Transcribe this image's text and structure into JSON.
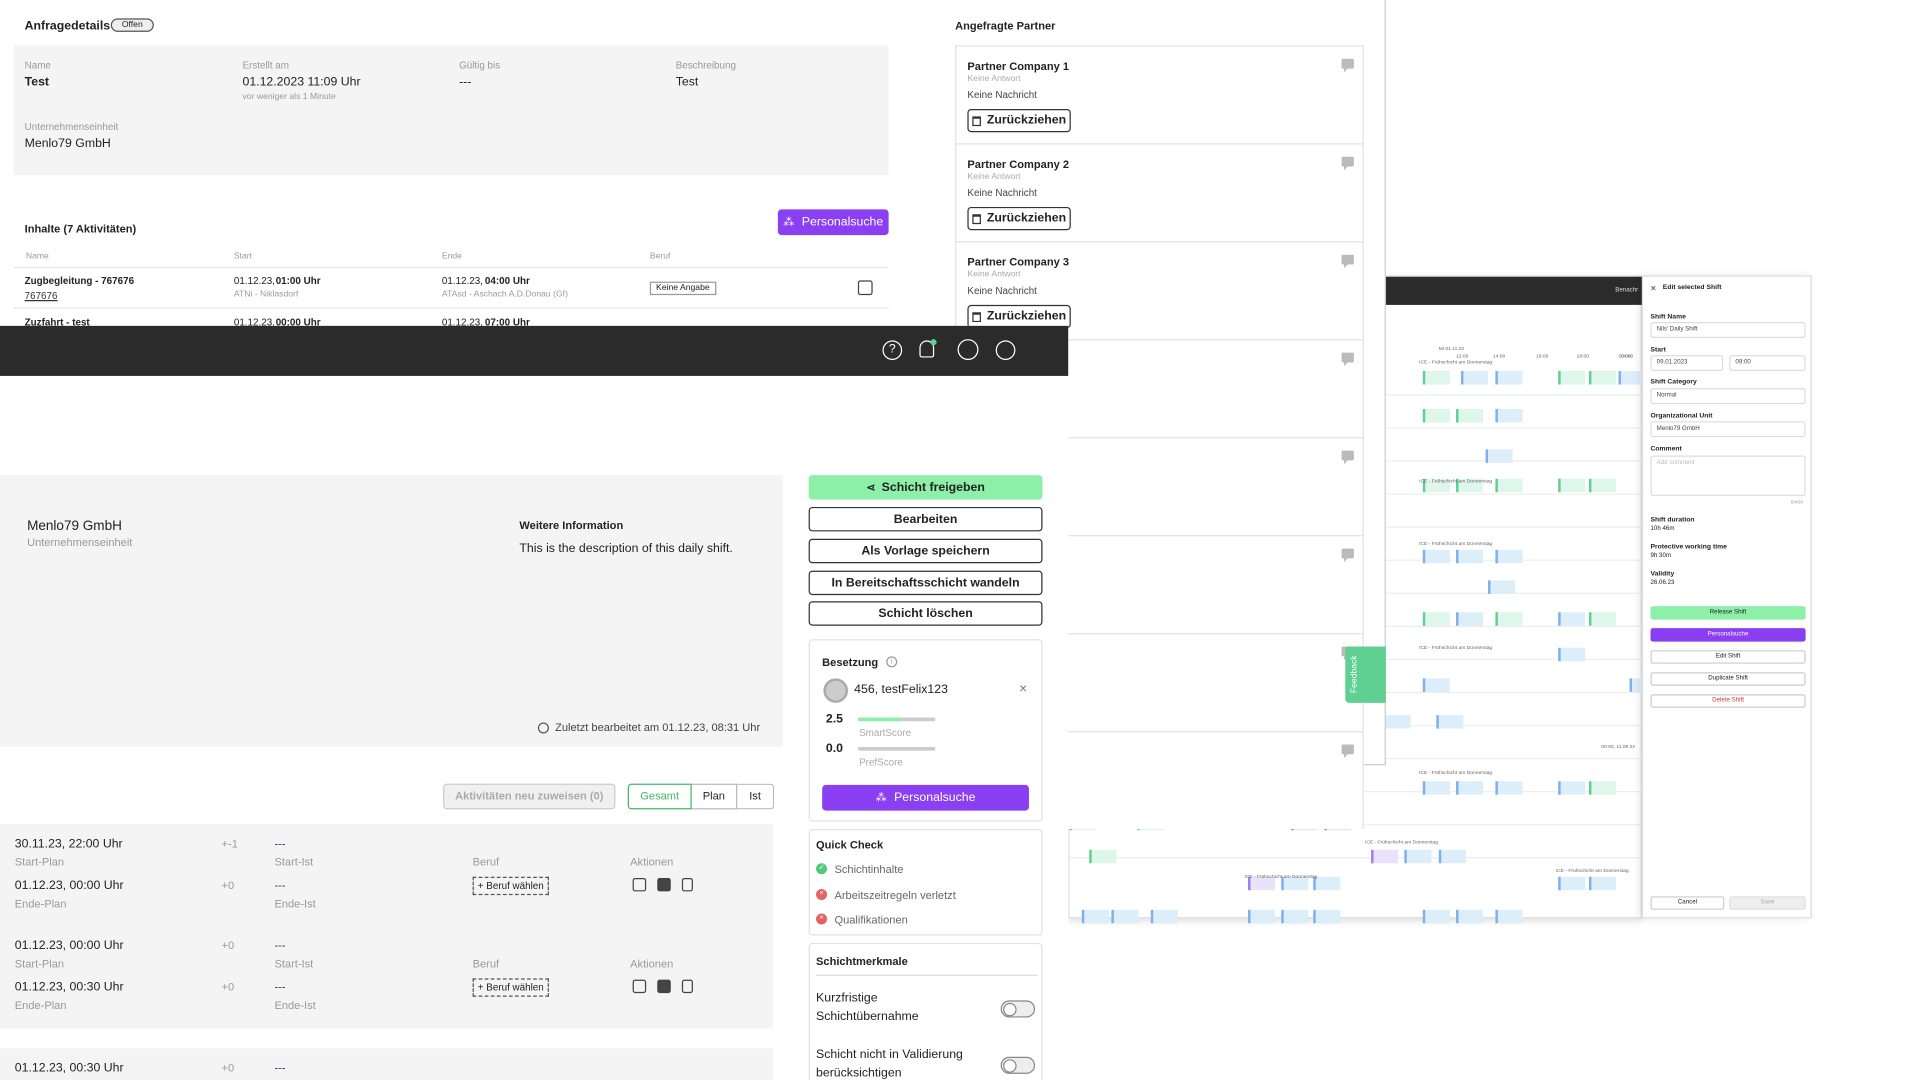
{
  "request": {
    "title": "Anfragedetails",
    "status_badge": "Offen",
    "name_label": "Name",
    "name_value": "Test",
    "created_label": "Erstellt am",
    "created_value": "01.12.2023 11:09 Uhr",
    "created_relative": "vor weniger als 1 Minute",
    "valid_label": "Gültig bis",
    "valid_value": "---",
    "desc_label": "Beschreibung",
    "desc_value": "Test",
    "unit_label": "Unternehmenseinheit",
    "unit_value": "Menlo79 GmbH",
    "contents_title": "Inhalte (7 Aktivitäten)",
    "search_button": "Personalsuche",
    "columns": [
      "Name",
      "Start",
      "Ende",
      "Beruf"
    ],
    "rows": [
      {
        "name": "Zugbegleitung - 767676",
        "link": "767676",
        "start_date": "01.12.23,",
        "start_time": "01:00 Uhr",
        "start_loc": "ATNi - Niklasdorf",
        "end_date": "01.12.23,",
        "end_time": "04:00 Uhr",
        "end_loc": "ATAsd - Aschach A.D.Donau (Gf)",
        "job": "Keine Angabe"
      },
      {
        "name": "Zuzfahrt - test",
        "start_date": "01.12.23,",
        "start_time": "00:00 Uhr",
        "end_date": "01.12.23,",
        "end_time": "07:00 Uhr"
      }
    ]
  },
  "partners": {
    "title": "Angefragte Partner",
    "items": [
      {
        "name": "Partner Company 1",
        "response": "Keine Antwort",
        "message": "Keine Nachricht",
        "button": "Zurückziehen"
      },
      {
        "name": "Partner Company 2",
        "response": "Keine Antwort",
        "message": "Keine Nachricht",
        "button": "Zurückziehen"
      },
      {
        "name": "Partner Company 3",
        "response": "Keine Antwort",
        "message": "Keine Nachricht",
        "button": "Zurückziehen"
      }
    ]
  },
  "shift": {
    "unit_name": "Menlo79 GmbH",
    "unit_label": "Unternehmenseinheit",
    "info_title": "Weitere Information",
    "info_text": "This is the description of this daily shift.",
    "last_edited": "Zuletzt bearbeitet am 01.12.23, 08:31 Uhr",
    "reassign_button": "Aktivitäten neu zuweisen (0)",
    "view_tabs": [
      "Gesamt",
      "Plan",
      "Ist"
    ],
    "activities": [
      {
        "start_plan": "30.11.23, 22:00 Uhr",
        "start_delta": "+-1",
        "start_ist": "---",
        "end_plan": "01.12.23, 00:00 Uhr",
        "end_delta": "+0",
        "end_ist": "---",
        "job_label": "Beruf",
        "job_button": "+ Beruf wählen",
        "actions_label": "Aktionen"
      },
      {
        "start_plan": "01.12.23, 00:00 Uhr",
        "start_delta": "+0",
        "start_ist": "---",
        "end_plan": "01.12.23, 00:30 Uhr",
        "end_delta": "+0",
        "end_ist": "---",
        "job_label": "Beruf",
        "job_button": "+ Beruf wählen",
        "actions_label": "Aktionen"
      },
      {
        "start_plan": "01.12.23, 00:30 Uhr",
        "start_delta": "+0",
        "start_ist": "---"
      }
    ],
    "labels": {
      "start_plan": "Start-Plan",
      "end_plan": "Ende-Plan",
      "start_ist": "Start-Ist",
      "end_ist": "Ende-Ist"
    }
  },
  "actions": {
    "release": "Schicht freigeben",
    "edit": "Bearbeiten",
    "template": "Als Vorlage speichern",
    "standby": "In Bereitschaftsschicht wandeln",
    "delete": "Schicht löschen"
  },
  "staffing": {
    "title": "Besetzung",
    "person": "456, testFelix123",
    "smart_value": "2.5",
    "smart_label": "SmartScore",
    "smart_fill": 0.55,
    "pref_value": "0.0",
    "pref_label": "PrefScore",
    "pref_fill": 0.0,
    "search_button": "Personalsuche"
  },
  "quick_check": {
    "title": "Quick Check",
    "items": [
      {
        "label": "Schichtinhalte",
        "status": "ok"
      },
      {
        "label": "Arbeitszeitregeln verletzt",
        "status": "error"
      },
      {
        "label": "Qualifikationen",
        "status": "error"
      }
    ]
  },
  "features": {
    "title": "Schichtmerkmale",
    "items": [
      {
        "label_1": "Kurzfristige",
        "label_2": "Schichtübernahme",
        "on": false
      },
      {
        "label_1": "Schicht nicht in Validierung",
        "label_2": "berücksichtigen",
        "on": false
      }
    ]
  },
  "feedback_tab": "Feedback",
  "calendar": {
    "header_right": "Benachr",
    "date_label": "Mi 01.11.22",
    "times": [
      "12:00",
      "14:00",
      "16:00",
      "18:00",
      "20:00",
      "22:00",
      "04:00"
    ],
    "bottom_time": "00:00, 11.09.22",
    "chip_label": "Zugfahrt",
    "chip_sub": "DE_BSS",
    "row_label": "ICE - Frühschicht am Donnerstag"
  },
  "edit_panel": {
    "title": "Edit selected Shift",
    "shift_name_label": "Shift Name",
    "shift_name_value": "Nils' Daily Shift",
    "start_label": "Start",
    "start_date": "09.01.2023",
    "start_time": "09:00",
    "category_label": "Shift Category",
    "category_value": "Normal",
    "org_label": "Organizational Unit",
    "org_value": "Menlo79 GmbH",
    "comment_label": "Comment",
    "comment_placeholder": "Add comment",
    "comment_count": "0/400",
    "duration_label": "Shift duration",
    "duration_value": "10h 46m",
    "protective_label": "Protective working time",
    "protective_value": "9h 30m",
    "validity_label": "Validity",
    "validity_value": "26.06.23",
    "release_btn": "Release Shift",
    "search_btn": "Personalsuche",
    "edit_btn": "Edit Shift",
    "duplicate_btn": "Duplicate Shift",
    "delete_btn": "Delete Shift",
    "cancel_btn": "Cancel",
    "save_btn": "Save"
  },
  "colors": {
    "purple": "#8a3ff2",
    "green_bg": "#8ef0a8",
    "tab_green": "#46b46c",
    "error_red": "#e36464",
    "ok_green": "#55c97a"
  }
}
